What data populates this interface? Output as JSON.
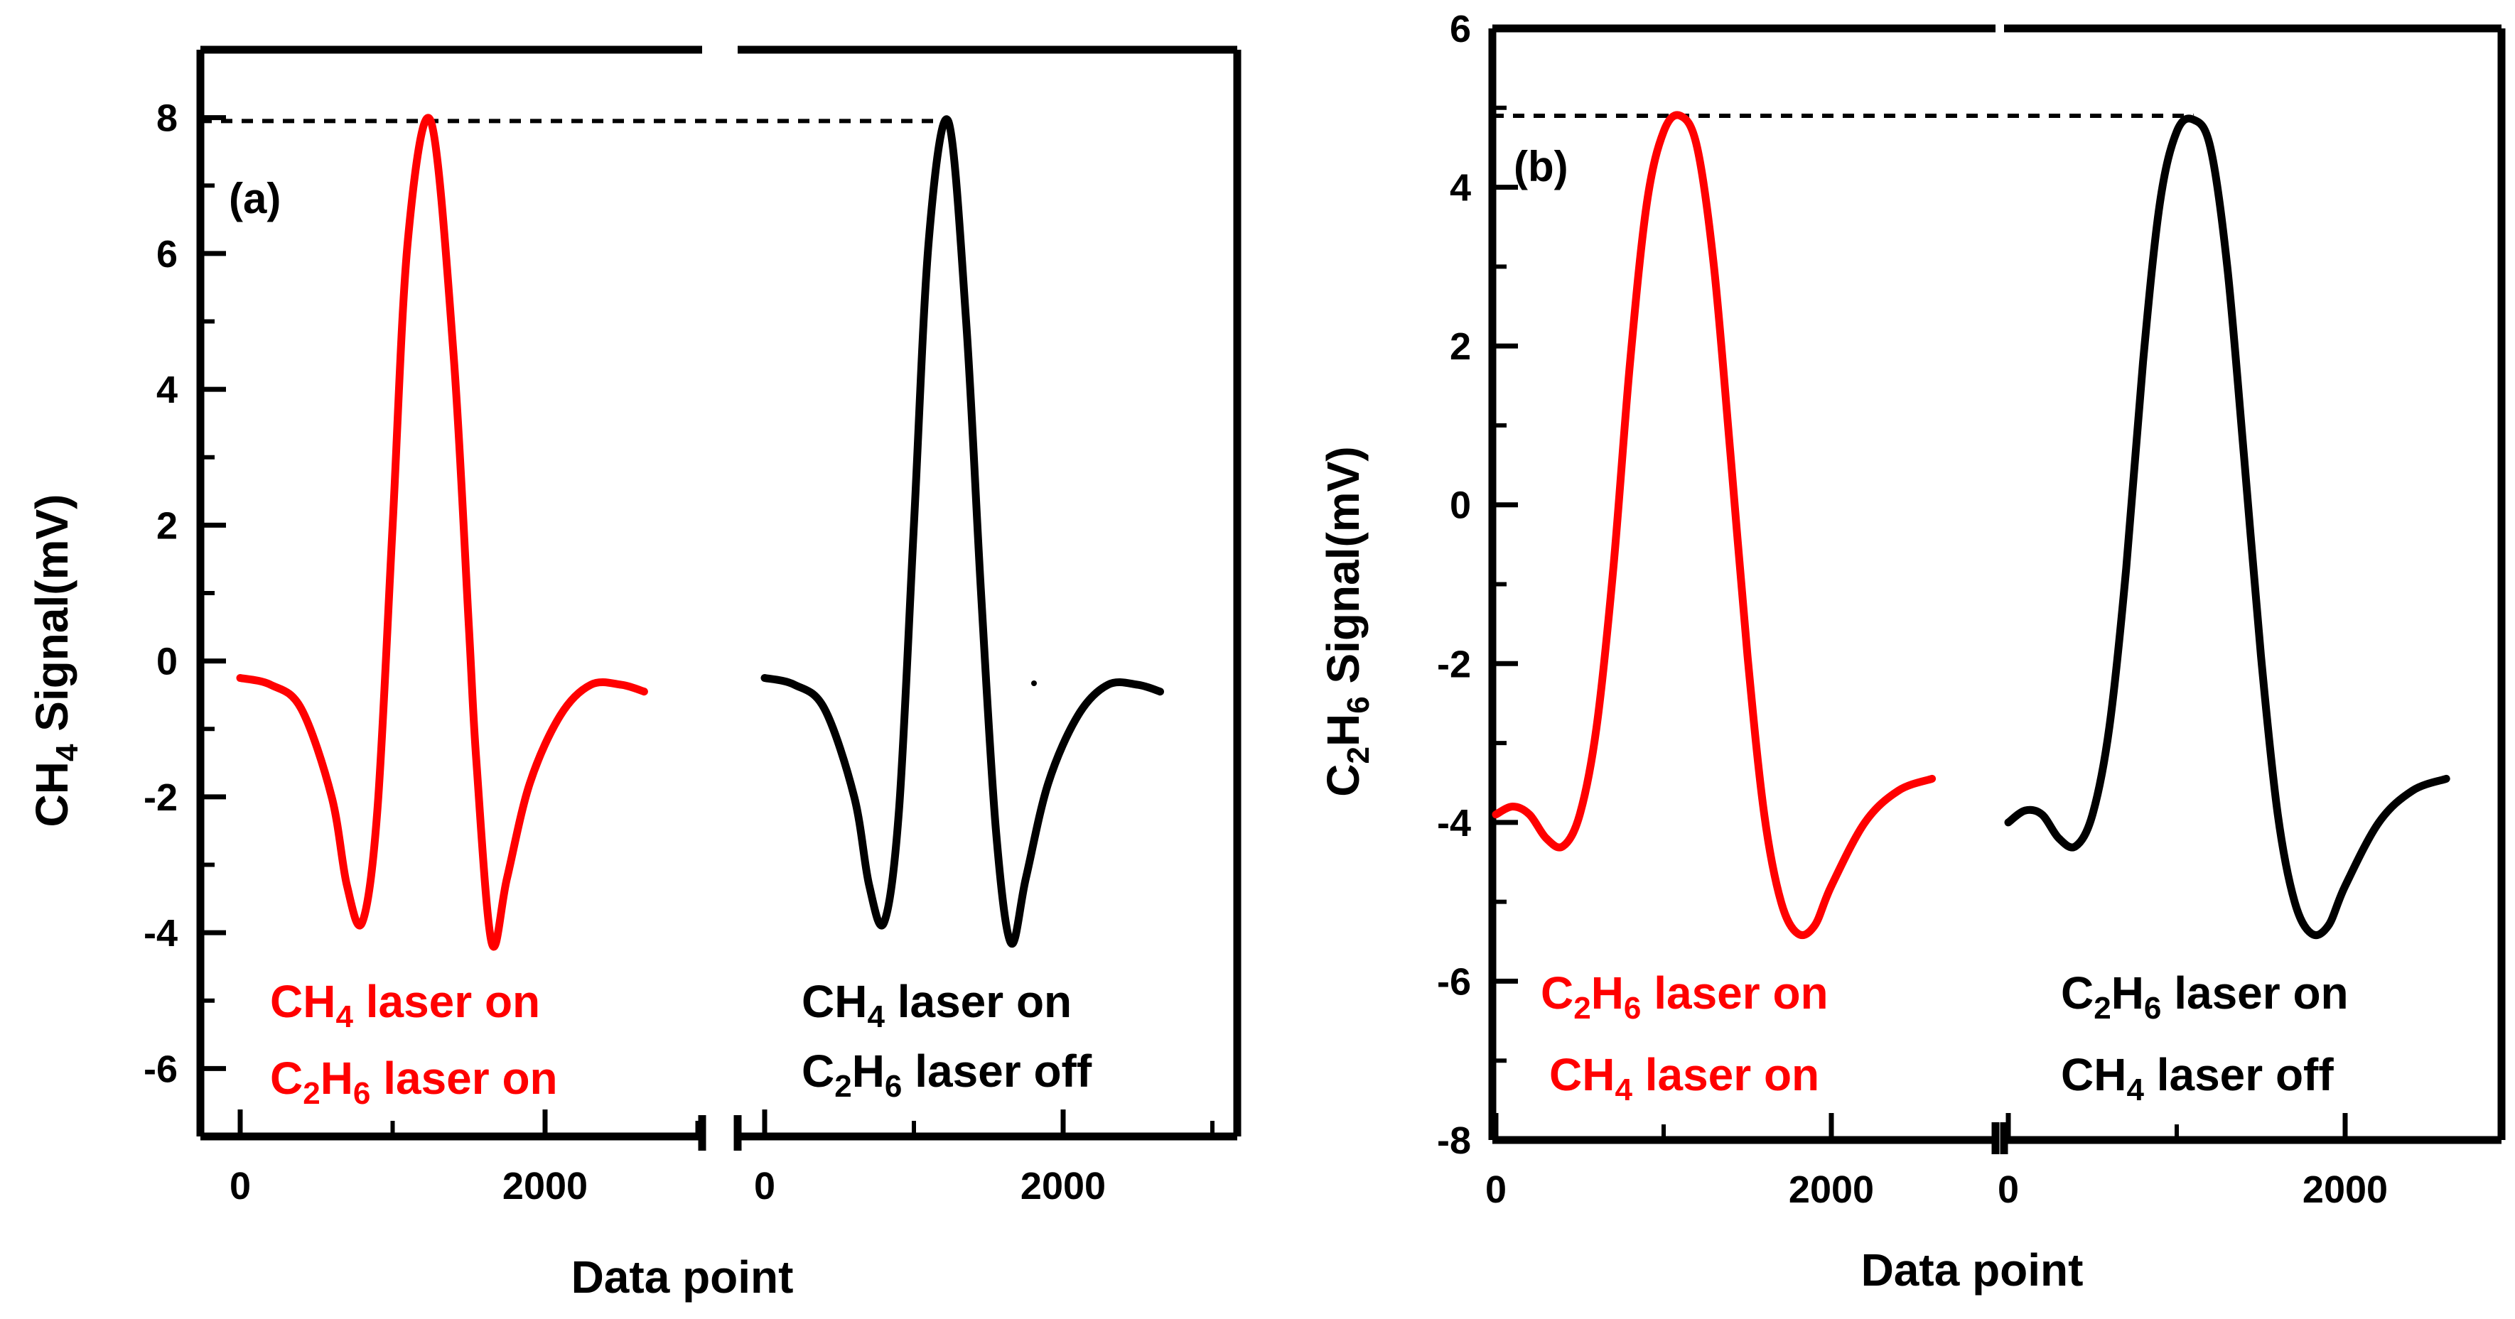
{
  "chart_data": [
    {
      "type": "line",
      "panel_label": "(a)",
      "ylabel": {
        "main_1": "CH",
        "sub_1": "4",
        "main_2": " Signal(mV)"
      },
      "xlabel": "Data point",
      "ylim": [
        -7,
        9
      ],
      "y_ticks": [
        "8",
        "6",
        "4",
        "2",
        "0",
        "-2",
        "-4",
        "-6"
      ],
      "x_ticks_left": [
        "0",
        "2000"
      ],
      "x_ticks_right": [
        "0",
        "2000"
      ],
      "peak_reference_mV": 7.95,
      "series": [
        {
          "name": "CH4 laser on, C2H6 laser on",
          "color": "#ff0000",
          "subplot": "left",
          "x": [
            0,
            200,
            400,
            600,
            700,
            800,
            900,
            1000,
            1100,
            1250,
            1400,
            1500,
            1550,
            1650,
            1750,
            1900,
            2100,
            2300,
            2500,
            2650
          ],
          "y": [
            -0.25,
            -0.35,
            -0.7,
            -2.0,
            -3.3,
            -3.85,
            -2.2,
            2.0,
            6.2,
            7.95,
            4.5,
            0.5,
            -1.5,
            -4.15,
            -3.2,
            -1.8,
            -0.8,
            -0.35,
            -0.35,
            -0.45
          ]
        },
        {
          "name": "CH4 laser on, C2H6 laser off",
          "color": "#000000",
          "subplot": "right",
          "x": [
            0,
            200,
            400,
            600,
            700,
            800,
            900,
            1000,
            1100,
            1230,
            1350,
            1450,
            1550,
            1650,
            1750,
            1900,
            2100,
            2300,
            2500,
            2650
          ],
          "y": [
            -0.25,
            -0.35,
            -0.7,
            -2.0,
            -3.3,
            -3.85,
            -2.2,
            2.0,
            6.2,
            7.95,
            5.0,
            1.0,
            -2.5,
            -4.15,
            -3.2,
            -1.8,
            -0.8,
            -0.35,
            -0.35,
            -0.45
          ]
        }
      ],
      "legend_left": [
        {
          "line1_main": "CH",
          "line1_sub": "4",
          "line1_rest": " laser on",
          "line2_main_1": "C",
          "line2_sub_1": "2",
          "line2_main_2": "H",
          "line2_sub_2": "6",
          "line2_rest": " laser on"
        }
      ],
      "legend_right": [
        {
          "line1_main": "CH",
          "line1_sub": "4",
          "line1_rest": " laser on",
          "line2_main_1": "C",
          "line2_sub_1": "2",
          "line2_main_2": "H",
          "line2_sub_2": "6",
          "line2_rest": " laser off"
        }
      ]
    },
    {
      "type": "line",
      "panel_label": "(b)",
      "ylabel": {
        "main_1": "C",
        "sub_1": "2",
        "main_2": "H",
        "sub_2": "6",
        "main_3": " Signal(mV)"
      },
      "xlabel": "Data point",
      "ylim": [
        -8,
        6
      ],
      "y_ticks": [
        "6",
        "4",
        "2",
        "0",
        "-2",
        "-4",
        "-6",
        "-8"
      ],
      "x_ticks_left": [
        "0",
        "2000"
      ],
      "x_ticks_right": [
        "0",
        "2000"
      ],
      "peak_reference_mV": 4.9,
      "series": [
        {
          "name": "C2H6 laser on, CH4 laser on",
          "color": "#ff0000",
          "subplot": "left",
          "x": [
            0,
            100,
            200,
            300,
            400,
            500,
            600,
            700,
            800,
            900,
            1000,
            1100,
            1200,
            1300,
            1400,
            1500,
            1600,
            1700,
            1800,
            1900,
            2000,
            2200,
            2400,
            2600
          ],
          "y": [
            -3.9,
            -3.8,
            -3.9,
            -4.2,
            -4.3,
            -3.9,
            -2.8,
            -0.8,
            1.8,
            3.8,
            4.7,
            4.9,
            4.5,
            3.0,
            0.6,
            -1.9,
            -3.9,
            -5.0,
            -5.4,
            -5.3,
            -4.8,
            -4.0,
            -3.6,
            -3.45
          ]
        },
        {
          "name": "C2H6 laser on, CH4 laser off",
          "color": "#000000",
          "subplot": "right",
          "x": [
            0,
            100,
            200,
            300,
            400,
            500,
            600,
            700,
            800,
            900,
            1000,
            1100,
            1200,
            1300,
            1400,
            1500,
            1600,
            1700,
            1800,
            1900,
            2000,
            2200,
            2400,
            2600
          ],
          "y": [
            -4.0,
            -3.85,
            -3.9,
            -4.2,
            -4.3,
            -3.9,
            -2.8,
            -0.8,
            1.8,
            3.8,
            4.7,
            4.85,
            4.5,
            3.0,
            0.6,
            -1.9,
            -3.9,
            -5.0,
            -5.4,
            -5.3,
            -4.8,
            -4.0,
            -3.6,
            -3.45
          ]
        }
      ],
      "legend_left": [
        {
          "line1_main_1": "C",
          "line1_sub_1": "2",
          "line1_main_2": "H",
          "line1_sub_2": "6",
          "line1_rest": " laser on",
          "line2_main": "CH",
          "line2_sub": "4",
          "line2_rest": " laser on"
        }
      ],
      "legend_right": [
        {
          "line1_main_1": "C",
          "line1_sub_1": "2",
          "line1_main_2": "H",
          "line1_sub_2": "6",
          "line1_rest": " laser on",
          "line2_main": "CH",
          "line2_sub": "4",
          "line2_rest": " laser off"
        }
      ]
    }
  ]
}
